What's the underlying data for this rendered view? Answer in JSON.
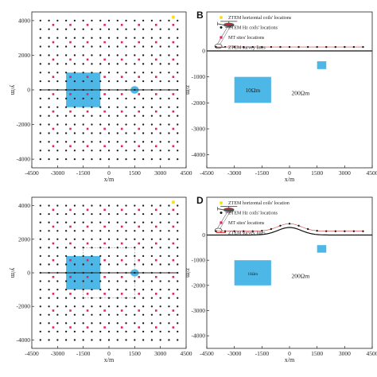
{
  "panels": [
    {
      "id": "A",
      "type": "plan",
      "letter": "",
      "xlabel": "x/m",
      "ylabel": "y/m",
      "xlim": [
        -4500,
        4500
      ],
      "ylim": [
        -4500,
        4500
      ],
      "xticks": [
        "-4500",
        "-3000",
        "-1500",
        "0",
        "1500",
        "3000",
        "4500"
      ],
      "yticks": [
        "4000",
        "2000",
        "0",
        "-2000",
        "-4000"
      ],
      "grid_spacing": 500,
      "grid_extent": [
        -4000,
        4000
      ],
      "mt_spacing": 1000,
      "mt_offset": 250,
      "survey_line_y": 0,
      "survey_line_x": [
        -4000,
        4000
      ],
      "bodies": [
        {
          "x": [
            -2500,
            -500
          ],
          "y": [
            -1000,
            1000
          ],
          "color": "#4db8e8"
        },
        {
          "x": [
            1300,
            1700
          ],
          "y": [
            -150,
            150
          ],
          "color": "#4db8e8"
        }
      ],
      "horizontal_coil": {
        "x": 3750,
        "y": 4200,
        "color": "#f5e31d"
      },
      "dashed_outline": null
    },
    {
      "id": "B",
      "type": "section",
      "letter": "B",
      "xlabel": "x/m",
      "ylabel": "z/m",
      "xlim": [
        -4500,
        4500
      ],
      "ylim": [
        -4500,
        1500
      ],
      "xticks": [
        "-4500",
        "-3000",
        "-1500",
        "0",
        "1500",
        "3000",
        "4500"
      ],
      "yticks": [
        "0",
        "-1000",
        "-2000",
        "-3000",
        "-4000"
      ],
      "terrain": "flat",
      "bodies": [
        {
          "x": [
            -3000,
            -1000
          ],
          "z": [
            -1000,
            -2000
          ],
          "color": "#4db8e8",
          "label": "10Ωm"
        },
        {
          "x": [
            1500,
            2000
          ],
          "z": [
            -400,
            -700
          ],
          "color": "#4db8e8",
          "label": ""
        }
      ],
      "background_label": "200Ωm",
      "legend": [
        {
          "symbol": "yellow-dot",
          "text": "ZTEM  horizontal coils' locations"
        },
        {
          "symbol": "black-dot",
          "text": "ZTEM  Hz coils' locations"
        },
        {
          "symbol": "red-square",
          "text": "MT sites' locations"
        },
        {
          "symbol": "red-line",
          "text": "ZTEM  survey lines"
        }
      ]
    },
    {
      "id": "C",
      "type": "plan",
      "letter": "",
      "xlabel": "x/m",
      "ylabel": "y/m",
      "xlim": [
        -4500,
        4500
      ],
      "ylim": [
        -4500,
        4500
      ],
      "xticks": [
        "-4500",
        "-3000",
        "-1500",
        "0",
        "1500",
        "3000",
        "4500"
      ],
      "yticks": [
        "4000",
        "2000",
        "0",
        "-2000",
        "-4000"
      ],
      "grid_spacing": 500,
      "grid_extent": [
        -4000,
        4000
      ],
      "mt_spacing": 1000,
      "mt_offset": 250,
      "survey_line_y": 0,
      "survey_line_x": [
        -4000,
        4000
      ],
      "bodies": [
        {
          "x": [
            -2500,
            -500
          ],
          "y": [
            -1000,
            1000
          ],
          "color": "#4db8e8"
        },
        {
          "x": [
            1300,
            1700
          ],
          "y": [
            -150,
            150
          ],
          "color": "#4db8e8"
        }
      ],
      "horizontal_coil": {
        "x": 3750,
        "y": 4200,
        "color": "#f5e31d"
      },
      "dashed_outline": {
        "x": [
          -1500,
          1500
        ],
        "y": [
          -1500,
          1500
        ]
      }
    },
    {
      "id": "D",
      "type": "section",
      "letter": "D",
      "xlabel": "x/m",
      "ylabel": "z/m",
      "xlim": [
        -4500,
        4500
      ],
      "ylim": [
        -4500,
        1500
      ],
      "xticks": [
        "-4500",
        "-3000",
        "-1500",
        "0",
        "1500",
        "3000",
        "4500"
      ],
      "yticks": [
        "0",
        "-1000",
        "-2000",
        "-3000",
        "-4000"
      ],
      "terrain": "hill",
      "bodies": [
        {
          "x": [
            -3000,
            -1000
          ],
          "z": [
            -1000,
            -2000
          ],
          "color": "#4db8e8",
          "label": "10Ωm"
        },
        {
          "x": [
            1500,
            2000
          ],
          "z": [
            -400,
            -700
          ],
          "color": "#4db8e8",
          "label": ""
        }
      ],
      "background_label": "200Ωm",
      "legend": [
        {
          "symbol": "yellow-dot",
          "text": "ZTEM  horizontal coils' location"
        },
        {
          "symbol": "black-dot",
          "text": "ZTEM  Hz coils' locations"
        },
        {
          "symbol": "red-square",
          "text": "MT sites' locations"
        },
        {
          "symbol": "red-line",
          "text": "ZTEM  survey lines"
        }
      ]
    }
  ],
  "colors": {
    "grid_dot": "#1a1a1a",
    "mt_site": "#e0245e",
    "survey_line": "#222222",
    "ground": "#111111",
    "legend_line": "#d03030"
  }
}
